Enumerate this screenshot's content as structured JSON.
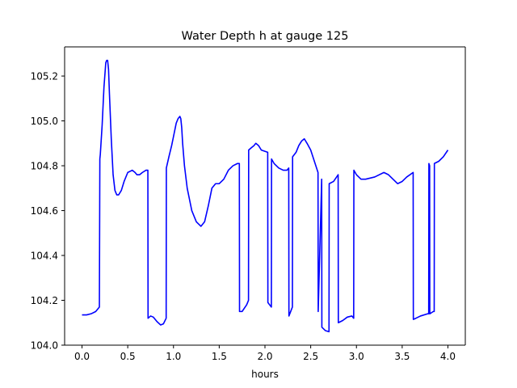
{
  "chart_data": {
    "type": "line",
    "title": "Water Depth h at gauge 125",
    "xlabel": "hours",
    "ylabel": "",
    "xlim": [
      -0.19,
      4.19
    ],
    "ylim": [
      104.0,
      105.33
    ],
    "xticks": [
      0.0,
      0.5,
      1.0,
      1.5,
      2.0,
      2.5,
      3.0,
      3.5,
      4.0
    ],
    "xtick_labels": [
      "0.0",
      "0.5",
      "1.0",
      "1.5",
      "2.0",
      "2.5",
      "3.0",
      "3.5",
      "4.0"
    ],
    "yticks": [
      104.0,
      104.2,
      104.4,
      104.6,
      104.8,
      105.0,
      105.2
    ],
    "ytick_labels": [
      "104.0",
      "104.2",
      "104.4",
      "104.6",
      "104.8",
      "105.0",
      "105.2"
    ],
    "grid": false,
    "series": [
      {
        "color": "#0000ff",
        "x": [
          0.0,
          0.05,
          0.1,
          0.15,
          0.19,
          0.195,
          0.2,
          0.22,
          0.24,
          0.26,
          0.27,
          0.28,
          0.29,
          0.3,
          0.32,
          0.34,
          0.36,
          0.38,
          0.4,
          0.43,
          0.46,
          0.5,
          0.55,
          0.58,
          0.6,
          0.63,
          0.66,
          0.7,
          0.72,
          0.722,
          0.75,
          0.78,
          0.82,
          0.86,
          0.89,
          0.92,
          0.922,
          0.95,
          0.98,
          1.0,
          1.03,
          1.05,
          1.07,
          1.08,
          1.09,
          1.1,
          1.12,
          1.15,
          1.2,
          1.25,
          1.3,
          1.34,
          1.38,
          1.42,
          1.46,
          1.5,
          1.55,
          1.6,
          1.65,
          1.7,
          1.72,
          1.722,
          1.75,
          1.8,
          1.82,
          1.822,
          1.85,
          1.88,
          1.9,
          1.93,
          1.96,
          2.03,
          2.032,
          2.07,
          2.072,
          2.1,
          2.15,
          2.2,
          2.24,
          2.26,
          2.262,
          2.3,
          2.302,
          2.34,
          2.37,
          2.4,
          2.43,
          2.46,
          2.5,
          2.54,
          2.58,
          2.582,
          2.62,
          2.622,
          2.66,
          2.7,
          2.702,
          2.75,
          2.8,
          2.802,
          2.85,
          2.9,
          2.95,
          2.97,
          2.972,
          3.0,
          3.05,
          3.1,
          3.2,
          3.3,
          3.35,
          3.4,
          3.45,
          3.5,
          3.55,
          3.62,
          3.622,
          3.65,
          3.7,
          3.78,
          3.79,
          3.792,
          3.8,
          3.802,
          3.84,
          3.85,
          3.852,
          3.9,
          3.95,
          4.0
        ],
        "y": [
          104.135,
          104.135,
          104.14,
          104.15,
          104.17,
          104.83,
          104.85,
          104.98,
          105.15,
          105.26,
          105.27,
          105.27,
          105.23,
          105.12,
          104.92,
          104.76,
          104.69,
          104.67,
          104.67,
          104.69,
          104.73,
          104.77,
          104.78,
          104.77,
          104.76,
          104.76,
          104.77,
          104.78,
          104.78,
          104.12,
          104.13,
          104.125,
          104.105,
          104.09,
          104.095,
          104.12,
          104.79,
          104.84,
          104.89,
          104.93,
          104.99,
          105.01,
          105.02,
          105.01,
          104.97,
          104.9,
          104.8,
          104.7,
          104.6,
          104.55,
          104.53,
          104.55,
          104.62,
          104.7,
          104.72,
          104.72,
          104.74,
          104.78,
          104.8,
          104.81,
          104.81,
          104.15,
          104.15,
          104.18,
          104.2,
          104.87,
          104.88,
          104.89,
          104.9,
          104.89,
          104.87,
          104.86,
          104.19,
          104.17,
          104.83,
          104.81,
          104.79,
          104.78,
          104.78,
          104.79,
          104.13,
          104.17,
          104.84,
          104.86,
          104.89,
          104.91,
          104.92,
          104.9,
          104.87,
          104.82,
          104.77,
          104.15,
          104.74,
          104.08,
          104.065,
          104.06,
          104.72,
          104.73,
          104.76,
          104.1,
          104.11,
          104.125,
          104.13,
          104.12,
          104.78,
          104.76,
          104.74,
          104.74,
          104.75,
          104.77,
          104.76,
          104.74,
          104.72,
          104.73,
          104.75,
          104.77,
          104.115,
          104.12,
          104.13,
          104.14,
          104.14,
          104.81,
          104.8,
          104.14,
          104.15,
          104.15,
          104.81,
          104.82,
          104.84,
          104.87
        ]
      }
    ]
  }
}
